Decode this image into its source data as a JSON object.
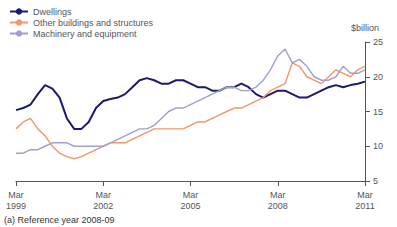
{
  "chart_data": {
    "type": "line",
    "ylabel": "$billion",
    "annotations": [
      "(a) Reference year 2008-09"
    ],
    "categories": [
      "Mar\n1999",
      null,
      null,
      null,
      null,
      null,
      null,
      null,
      null,
      null,
      null,
      null,
      "Mar\n2002",
      null,
      null,
      null,
      null,
      null,
      null,
      null,
      null,
      null,
      null,
      null,
      "Mar\n2005",
      null,
      null,
      null,
      null,
      null,
      null,
      null,
      null,
      null,
      null,
      null,
      "Mar\n2008",
      null,
      null,
      null,
      null,
      null,
      null,
      null,
      null,
      null,
      null,
      null,
      "Mar\n2011"
    ],
    "series": [
      {
        "name": "Dwellings",
        "color": "#1a1a6e",
        "values": [
          15.2,
          15.5,
          16.0,
          17.5,
          18.8,
          18.3,
          17.0,
          14.0,
          12.5,
          12.5,
          13.5,
          15.5,
          16.5,
          16.8,
          17.0,
          17.5,
          18.5,
          19.5,
          19.8,
          19.5,
          19.0,
          19.0,
          19.5,
          19.5,
          19.0,
          18.5,
          18.5,
          18.0,
          18.0,
          18.5,
          18.5,
          19.0,
          18.5,
          17.5,
          17.0,
          17.5,
          18.0,
          18.0,
          17.5,
          17.0,
          17.0,
          17.5,
          18.0,
          18.5,
          18.8,
          18.5,
          18.8,
          19.0,
          19.3
        ]
      },
      {
        "name": "Other buildings and structures",
        "color": "#f4956a",
        "values": [
          12.5,
          13.5,
          14.0,
          12.5,
          11.5,
          10.0,
          9.0,
          8.5,
          8.2,
          8.5,
          9.0,
          9.5,
          10.0,
          10.5,
          10.5,
          10.5,
          11.0,
          11.5,
          12.0,
          12.5,
          12.5,
          12.5,
          12.5,
          12.5,
          13.0,
          13.5,
          13.5,
          14.0,
          14.5,
          15.0,
          15.5,
          15.5,
          16.0,
          16.5,
          17.0,
          18.0,
          18.5,
          19.0,
          22.0,
          21.5,
          20.0,
          19.5,
          19.0,
          20.0,
          21.0,
          20.5,
          20.0,
          21.0,
          21.5
        ]
      },
      {
        "name": "Machinery and equipment",
        "color": "#a0a0d0",
        "values": [
          9.0,
          9.0,
          9.5,
          9.5,
          10.0,
          10.5,
          10.5,
          10.5,
          10.0,
          10.0,
          10.0,
          10.0,
          10.0,
          10.5,
          11.0,
          11.5,
          12.0,
          12.5,
          12.5,
          13.0,
          14.0,
          15.0,
          15.5,
          15.5,
          16.0,
          16.5,
          17.0,
          17.5,
          18.0,
          18.5,
          18.5,
          18.0,
          18.0,
          18.5,
          19.5,
          21.0,
          23.0,
          24.0,
          22.0,
          22.5,
          21.5,
          20.0,
          19.5,
          19.5,
          20.0,
          21.5,
          20.5,
          20.5,
          21.0
        ]
      }
    ],
    "ylim": [
      5,
      25
    ],
    "yticks": [
      5,
      10,
      15,
      20,
      25
    ],
    "grid": false,
    "legend": "upper left"
  }
}
